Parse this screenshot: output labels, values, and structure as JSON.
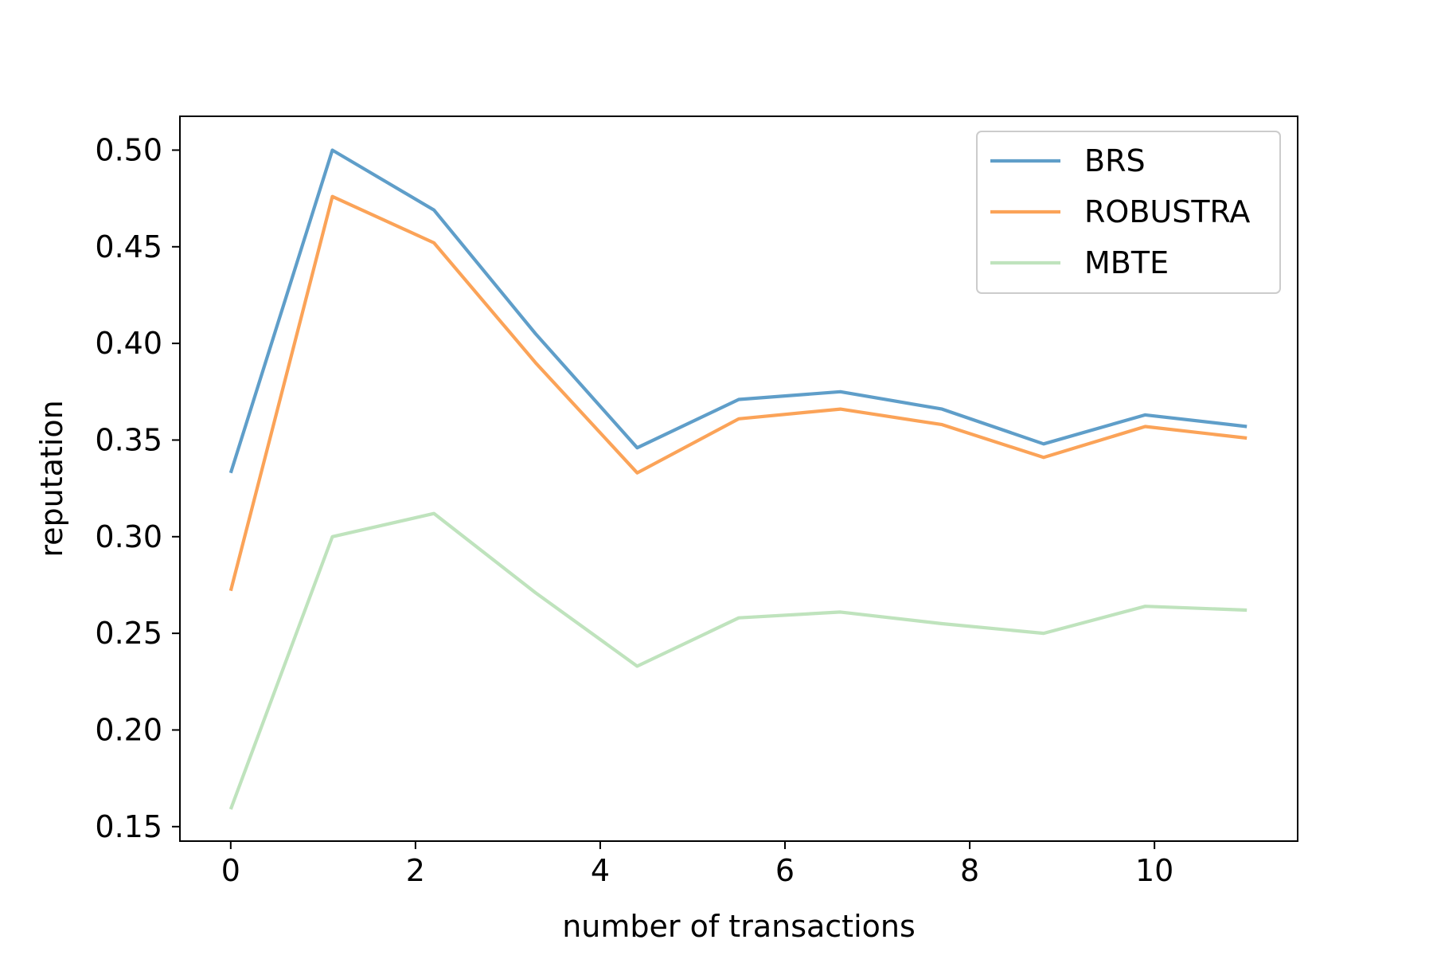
{
  "chart_data": {
    "type": "line",
    "title": "",
    "xlabel": "number of transactions",
    "ylabel": "reputation",
    "xlim": [
      -0.55,
      11.55
    ],
    "ylim": [
      0.1425,
      0.5175
    ],
    "xticks": [
      0,
      2,
      4,
      6,
      8,
      10
    ],
    "xtick_labels": [
      "0",
      "2",
      "4",
      "6",
      "8",
      "10"
    ],
    "yticks": [
      0.15,
      0.2,
      0.25,
      0.3,
      0.35,
      0.4,
      0.45,
      0.5
    ],
    "ytick_labels": [
      "0.15",
      "0.20",
      "0.25",
      "0.30",
      "0.35",
      "0.40",
      "0.45",
      "0.50"
    ],
    "grid": false,
    "legend_position": "top-right",
    "x": [
      0,
      1.1,
      2.2,
      3.3,
      4.4,
      5.5,
      6.6,
      7.7,
      8.8,
      9.9,
      11.0
    ],
    "series": [
      {
        "name": "BRS",
        "color": "#5f9ec9",
        "values": [
          0.333,
          0.5,
          0.469,
          0.405,
          0.346,
          0.371,
          0.375,
          0.366,
          0.348,
          0.363,
          0.357
        ]
      },
      {
        "name": "ROBUSTRA",
        "color": "#fba358",
        "values": [
          0.272,
          0.476,
          0.452,
          0.39,
          0.333,
          0.361,
          0.366,
          0.358,
          0.341,
          0.357,
          0.351
        ]
      },
      {
        "name": "MBTE",
        "color": "#bfe3bd",
        "values": [
          0.159,
          0.3,
          0.312,
          0.271,
          0.233,
          0.258,
          0.261,
          0.255,
          0.25,
          0.264,
          0.262
        ]
      }
    ]
  }
}
